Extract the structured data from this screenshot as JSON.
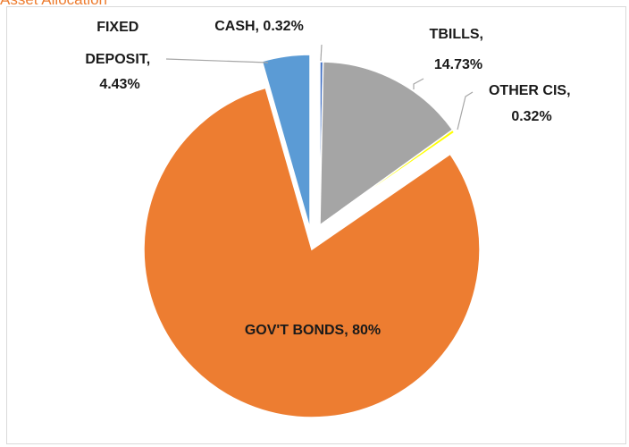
{
  "chart_data": {
    "type": "pie",
    "title": "Asset Allocation",
    "slices": [
      {
        "name": "CASH",
        "value": 0.32,
        "label": "CASH, 0.32%",
        "color": "#4472c4"
      },
      {
        "name": "TBILLS",
        "value": 14.73,
        "label": "TBILLS, 14.73%",
        "color": "#a5a5a5"
      },
      {
        "name": "OTHER CIS",
        "value": 0.32,
        "label": "OTHER CIS, 0.32%",
        "color": "#ffff00"
      },
      {
        "name": "GOV'T BONDS",
        "value": 80,
        "label": "GOV'T BONDS, 80%",
        "color": "#ed7d31"
      },
      {
        "name": "FIXED DEPOSIT",
        "value": 4.43,
        "label": "FIXED DEPOSIT, 4.43%",
        "color": "#5b9bd5"
      }
    ],
    "legend": "none",
    "label_style": "category name and percentage"
  }
}
